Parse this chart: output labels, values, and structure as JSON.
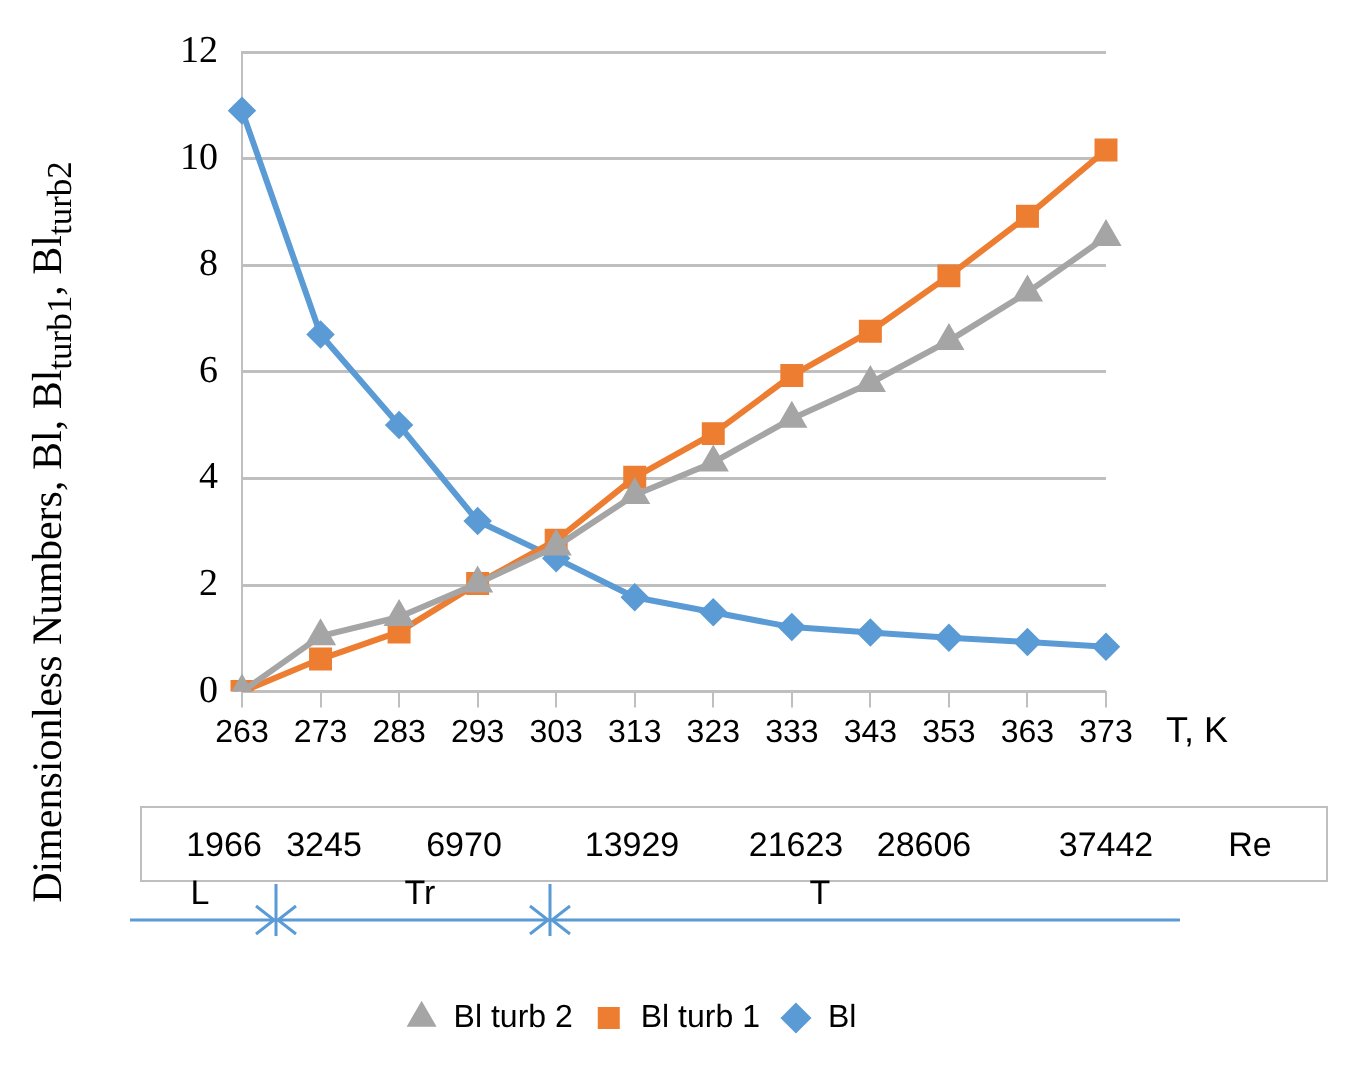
{
  "chart_data": {
    "type": "line",
    "xlabel": "T, K",
    "ylabel": "Dimensionless Numbers, Bl, Bl$_{turb1}$, Bl$_{turb2}$",
    "categories": [
      "263",
      "273",
      "283",
      "293",
      "303",
      "313",
      "323",
      "333",
      "343",
      "353",
      "363",
      "373"
    ],
    "ylim": [
      0,
      12
    ],
    "yticks": [
      0,
      2,
      4,
      6,
      8,
      10,
      12
    ],
    "grid": "y",
    "legend": "bottom",
    "series": [
      {
        "name": "Bl",
        "color": "#5b9bd5",
        "marker": "diamond",
        "values": [
          10.9,
          6.7,
          5.0,
          3.2,
          2.5,
          1.77,
          1.49,
          1.21,
          1.11,
          1.01,
          0.93,
          0.84
        ]
      },
      {
        "name": "Bl turb 1",
        "color": "#ed7d31",
        "marker": "square",
        "values": [
          0,
          0.61,
          1.12,
          2.03,
          2.84,
          4.02,
          4.84,
          5.93,
          6.76,
          7.8,
          8.92,
          10.16
        ]
      },
      {
        "name": "Bl turb 2",
        "color": "#a5a5a5",
        "marker": "triangle",
        "values": [
          0,
          1.04,
          1.4,
          2.03,
          2.72,
          3.69,
          4.3,
          5.12,
          5.79,
          6.58,
          7.49,
          8.53
        ]
      }
    ],
    "annotations": [
      "1966",
      "3245",
      "6970",
      "13929",
      "21623",
      "28606",
      "37442",
      "Re",
      "L",
      "Tr",
      "T"
    ]
  }
}
